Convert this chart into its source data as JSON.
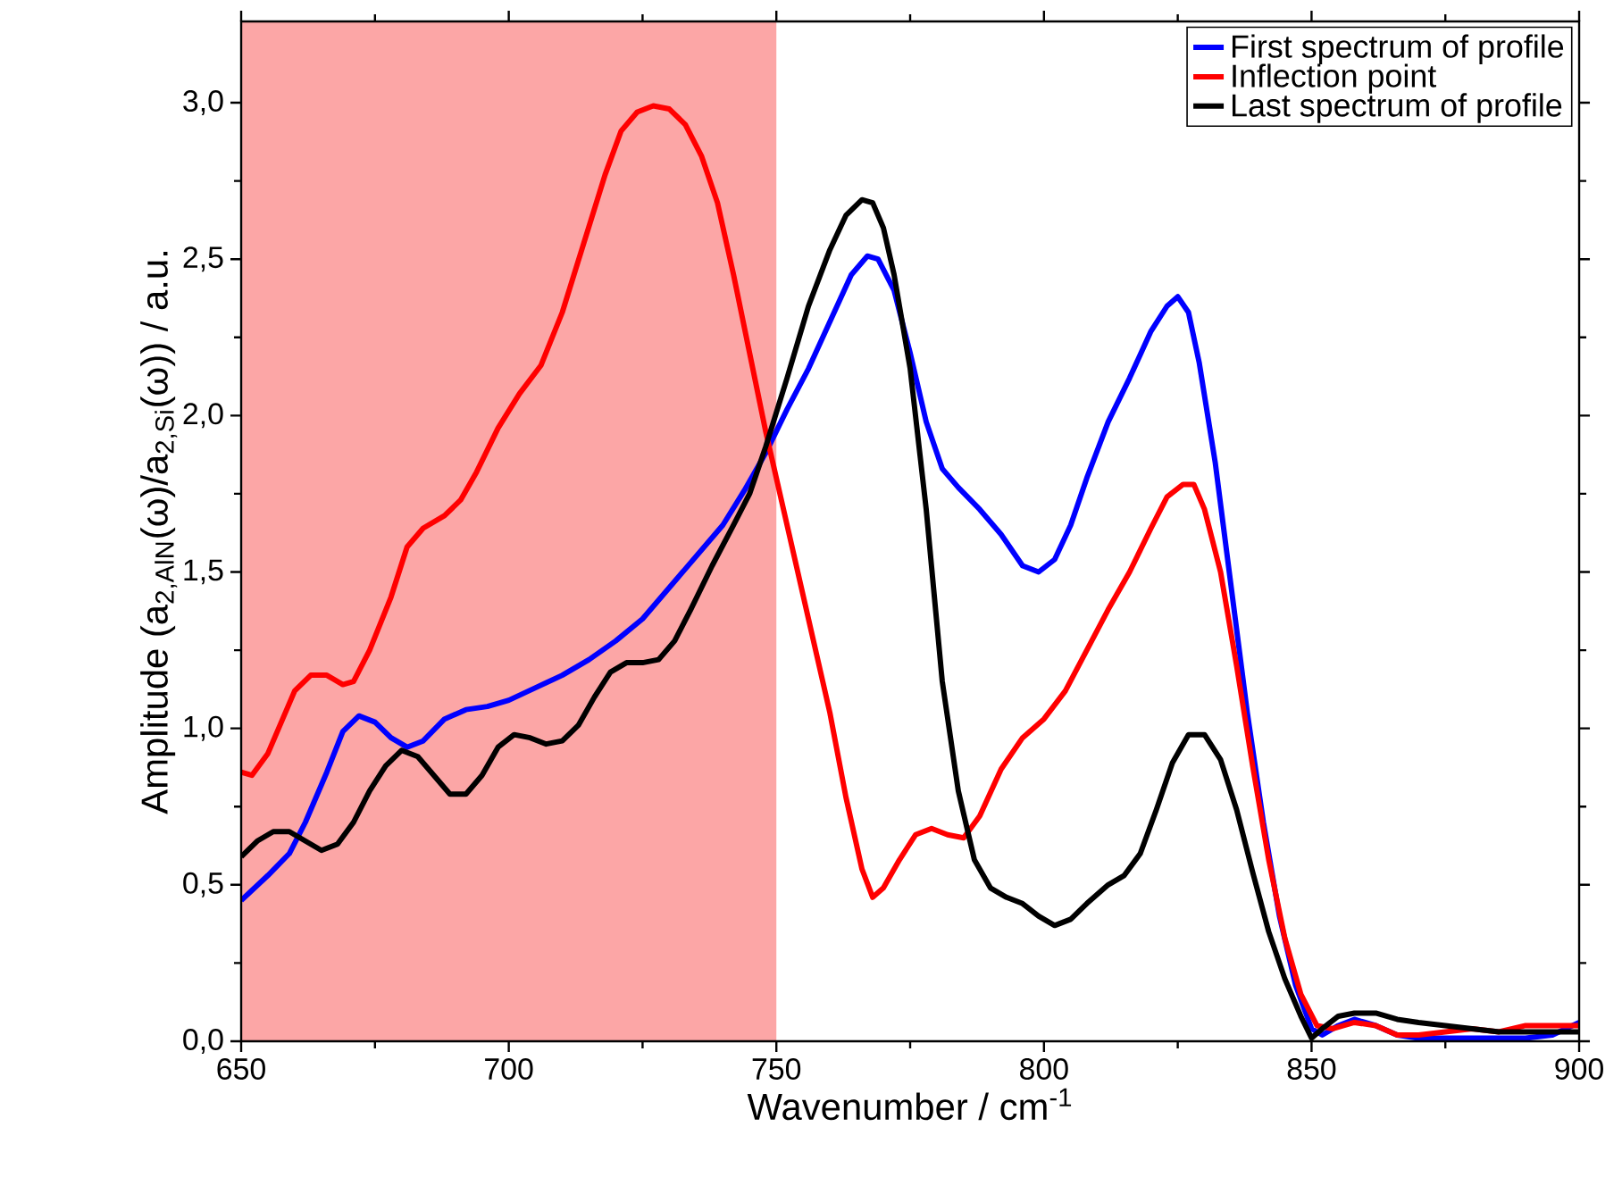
{
  "chart_data": {
    "type": "line",
    "xlabel": "Wavenumber / cm$^{-1}$",
    "ylabel": "Amplitude (a$_{2,AlN}$(ω)/a$_{2,Si}$(ω)) / a.u.",
    "xlim": [
      650,
      900
    ],
    "xticks": [
      650,
      700,
      750,
      800,
      850,
      900
    ],
    "ylim": [
      0,
      3.26
    ],
    "yticks": [
      {
        "value": 0,
        "label": "0,0"
      },
      {
        "value": 0.5,
        "label": "0,5"
      },
      {
        "value": 1,
        "label": "1,0"
      },
      {
        "value": 1.5,
        "label": "1,5"
      },
      {
        "value": 2,
        "label": "2,0"
      },
      {
        "value": 2.5,
        "label": "2,5"
      },
      {
        "value": 3,
        "label": "3,0"
      }
    ],
    "legend": "top right",
    "grid": false,
    "marker": "none",
    "line_style": "solid",
    "bands": [
      {
        "axis": "x",
        "from": 650,
        "to": 750,
        "color": "#fca6a6"
      }
    ],
    "series": [
      {
        "name": "First spectrum of profile",
        "color": "#0000ff",
        "x": [
          650,
          655,
          659,
          662,
          666,
          669,
          672,
          675,
          678,
          681,
          684,
          688,
          692,
          696,
          700,
          705,
          710,
          715,
          720,
          725,
          730,
          735,
          740,
          744,
          748,
          752,
          756,
          760,
          764,
          767,
          769,
          772,
          775,
          778,
          781,
          784,
          788,
          792,
          796,
          799,
          802,
          805,
          808,
          812,
          816,
          820,
          823,
          825,
          827,
          829,
          832,
          835,
          838,
          841,
          844,
          847,
          850,
          852,
          855,
          858,
          862,
          866,
          870,
          880,
          890,
          895,
          900
        ],
        "values": [
          0.45,
          0.53,
          0.6,
          0.7,
          0.86,
          0.99,
          1.04,
          1.02,
          0.97,
          0.94,
          0.96,
          1.03,
          1.06,
          1.07,
          1.09,
          1.13,
          1.17,
          1.22,
          1.28,
          1.35,
          1.45,
          1.55,
          1.65,
          1.76,
          1.88,
          2.02,
          2.15,
          2.3,
          2.45,
          2.51,
          2.5,
          2.4,
          2.2,
          1.98,
          1.83,
          1.77,
          1.7,
          1.62,
          1.52,
          1.5,
          1.54,
          1.65,
          1.8,
          1.98,
          2.12,
          2.27,
          2.35,
          2.38,
          2.33,
          2.17,
          1.85,
          1.45,
          1.05,
          0.7,
          0.4,
          0.18,
          0.04,
          0.02,
          0.05,
          0.07,
          0.05,
          0.02,
          0.01,
          0.01,
          0.01,
          0.02,
          0.06
        ]
      },
      {
        "name": "Inflection point",
        "color": "#ff0000",
        "x": [
          650,
          652,
          655,
          660,
          663,
          666,
          669,
          671,
          674,
          678,
          681,
          684,
          688,
          691,
          694,
          698,
          702,
          706,
          710,
          714,
          718,
          721,
          724,
          727,
          730,
          733,
          736,
          739,
          742,
          745,
          748,
          752,
          756,
          760,
          763,
          766,
          768,
          770,
          773,
          776,
          779,
          782,
          785,
          788,
          792,
          796,
          800,
          804,
          808,
          812,
          816,
          820,
          823,
          826,
          828,
          830,
          833,
          836,
          839,
          842,
          845,
          848,
          851,
          854,
          858,
          862,
          866,
          870,
          875,
          880,
          885,
          890,
          895,
          900
        ],
        "values": [
          0.86,
          0.85,
          0.92,
          1.12,
          1.17,
          1.17,
          1.14,
          1.15,
          1.25,
          1.42,
          1.58,
          1.64,
          1.68,
          1.73,
          1.82,
          1.96,
          2.07,
          2.16,
          2.33,
          2.55,
          2.77,
          2.91,
          2.97,
          2.99,
          2.98,
          2.93,
          2.83,
          2.68,
          2.45,
          2.2,
          1.95,
          1.65,
          1.35,
          1.05,
          0.78,
          0.55,
          0.46,
          0.49,
          0.58,
          0.66,
          0.68,
          0.66,
          0.65,
          0.72,
          0.87,
          0.97,
          1.03,
          1.12,
          1.25,
          1.38,
          1.5,
          1.64,
          1.74,
          1.78,
          1.78,
          1.7,
          1.5,
          1.2,
          0.88,
          0.58,
          0.33,
          0.15,
          0.05,
          0.04,
          0.06,
          0.05,
          0.02,
          0.02,
          0.03,
          0.04,
          0.03,
          0.05,
          0.05,
          0.05
        ]
      },
      {
        "name": "Last spectrum of profile",
        "color": "#000000",
        "x": [
          650,
          653,
          656,
          659,
          662,
          665,
          668,
          671,
          674,
          677,
          680,
          683,
          686,
          689,
          692,
          695,
          698,
          701,
          704,
          707,
          710,
          713,
          716,
          719,
          722,
          725,
          728,
          731,
          734,
          738,
          742,
          745,
          748,
          752,
          756,
          760,
          763,
          766,
          768,
          770,
          772,
          775,
          778,
          781,
          784,
          787,
          790,
          793,
          796,
          799,
          802,
          805,
          808,
          812,
          815,
          818,
          821,
          824,
          827,
          830,
          833,
          836,
          839,
          842,
          845,
          848,
          850,
          852,
          855,
          858,
          862,
          866,
          870,
          875,
          880,
          885,
          890,
          895,
          900
        ],
        "values": [
          0.59,
          0.64,
          0.67,
          0.67,
          0.64,
          0.61,
          0.63,
          0.7,
          0.8,
          0.88,
          0.93,
          0.91,
          0.85,
          0.79,
          0.79,
          0.85,
          0.94,
          0.98,
          0.97,
          0.95,
          0.96,
          1.01,
          1.1,
          1.18,
          1.21,
          1.21,
          1.22,
          1.28,
          1.38,
          1.52,
          1.65,
          1.75,
          1.9,
          2.12,
          2.35,
          2.53,
          2.64,
          2.69,
          2.68,
          2.6,
          2.45,
          2.15,
          1.7,
          1.15,
          0.8,
          0.58,
          0.49,
          0.46,
          0.44,
          0.4,
          0.37,
          0.39,
          0.44,
          0.5,
          0.53,
          0.6,
          0.74,
          0.89,
          0.98,
          0.98,
          0.9,
          0.74,
          0.54,
          0.35,
          0.2,
          0.08,
          0.01,
          0.04,
          0.08,
          0.09,
          0.09,
          0.07,
          0.06,
          0.05,
          0.04,
          0.03,
          0.03,
          0.03,
          0.03
        ]
      }
    ]
  }
}
